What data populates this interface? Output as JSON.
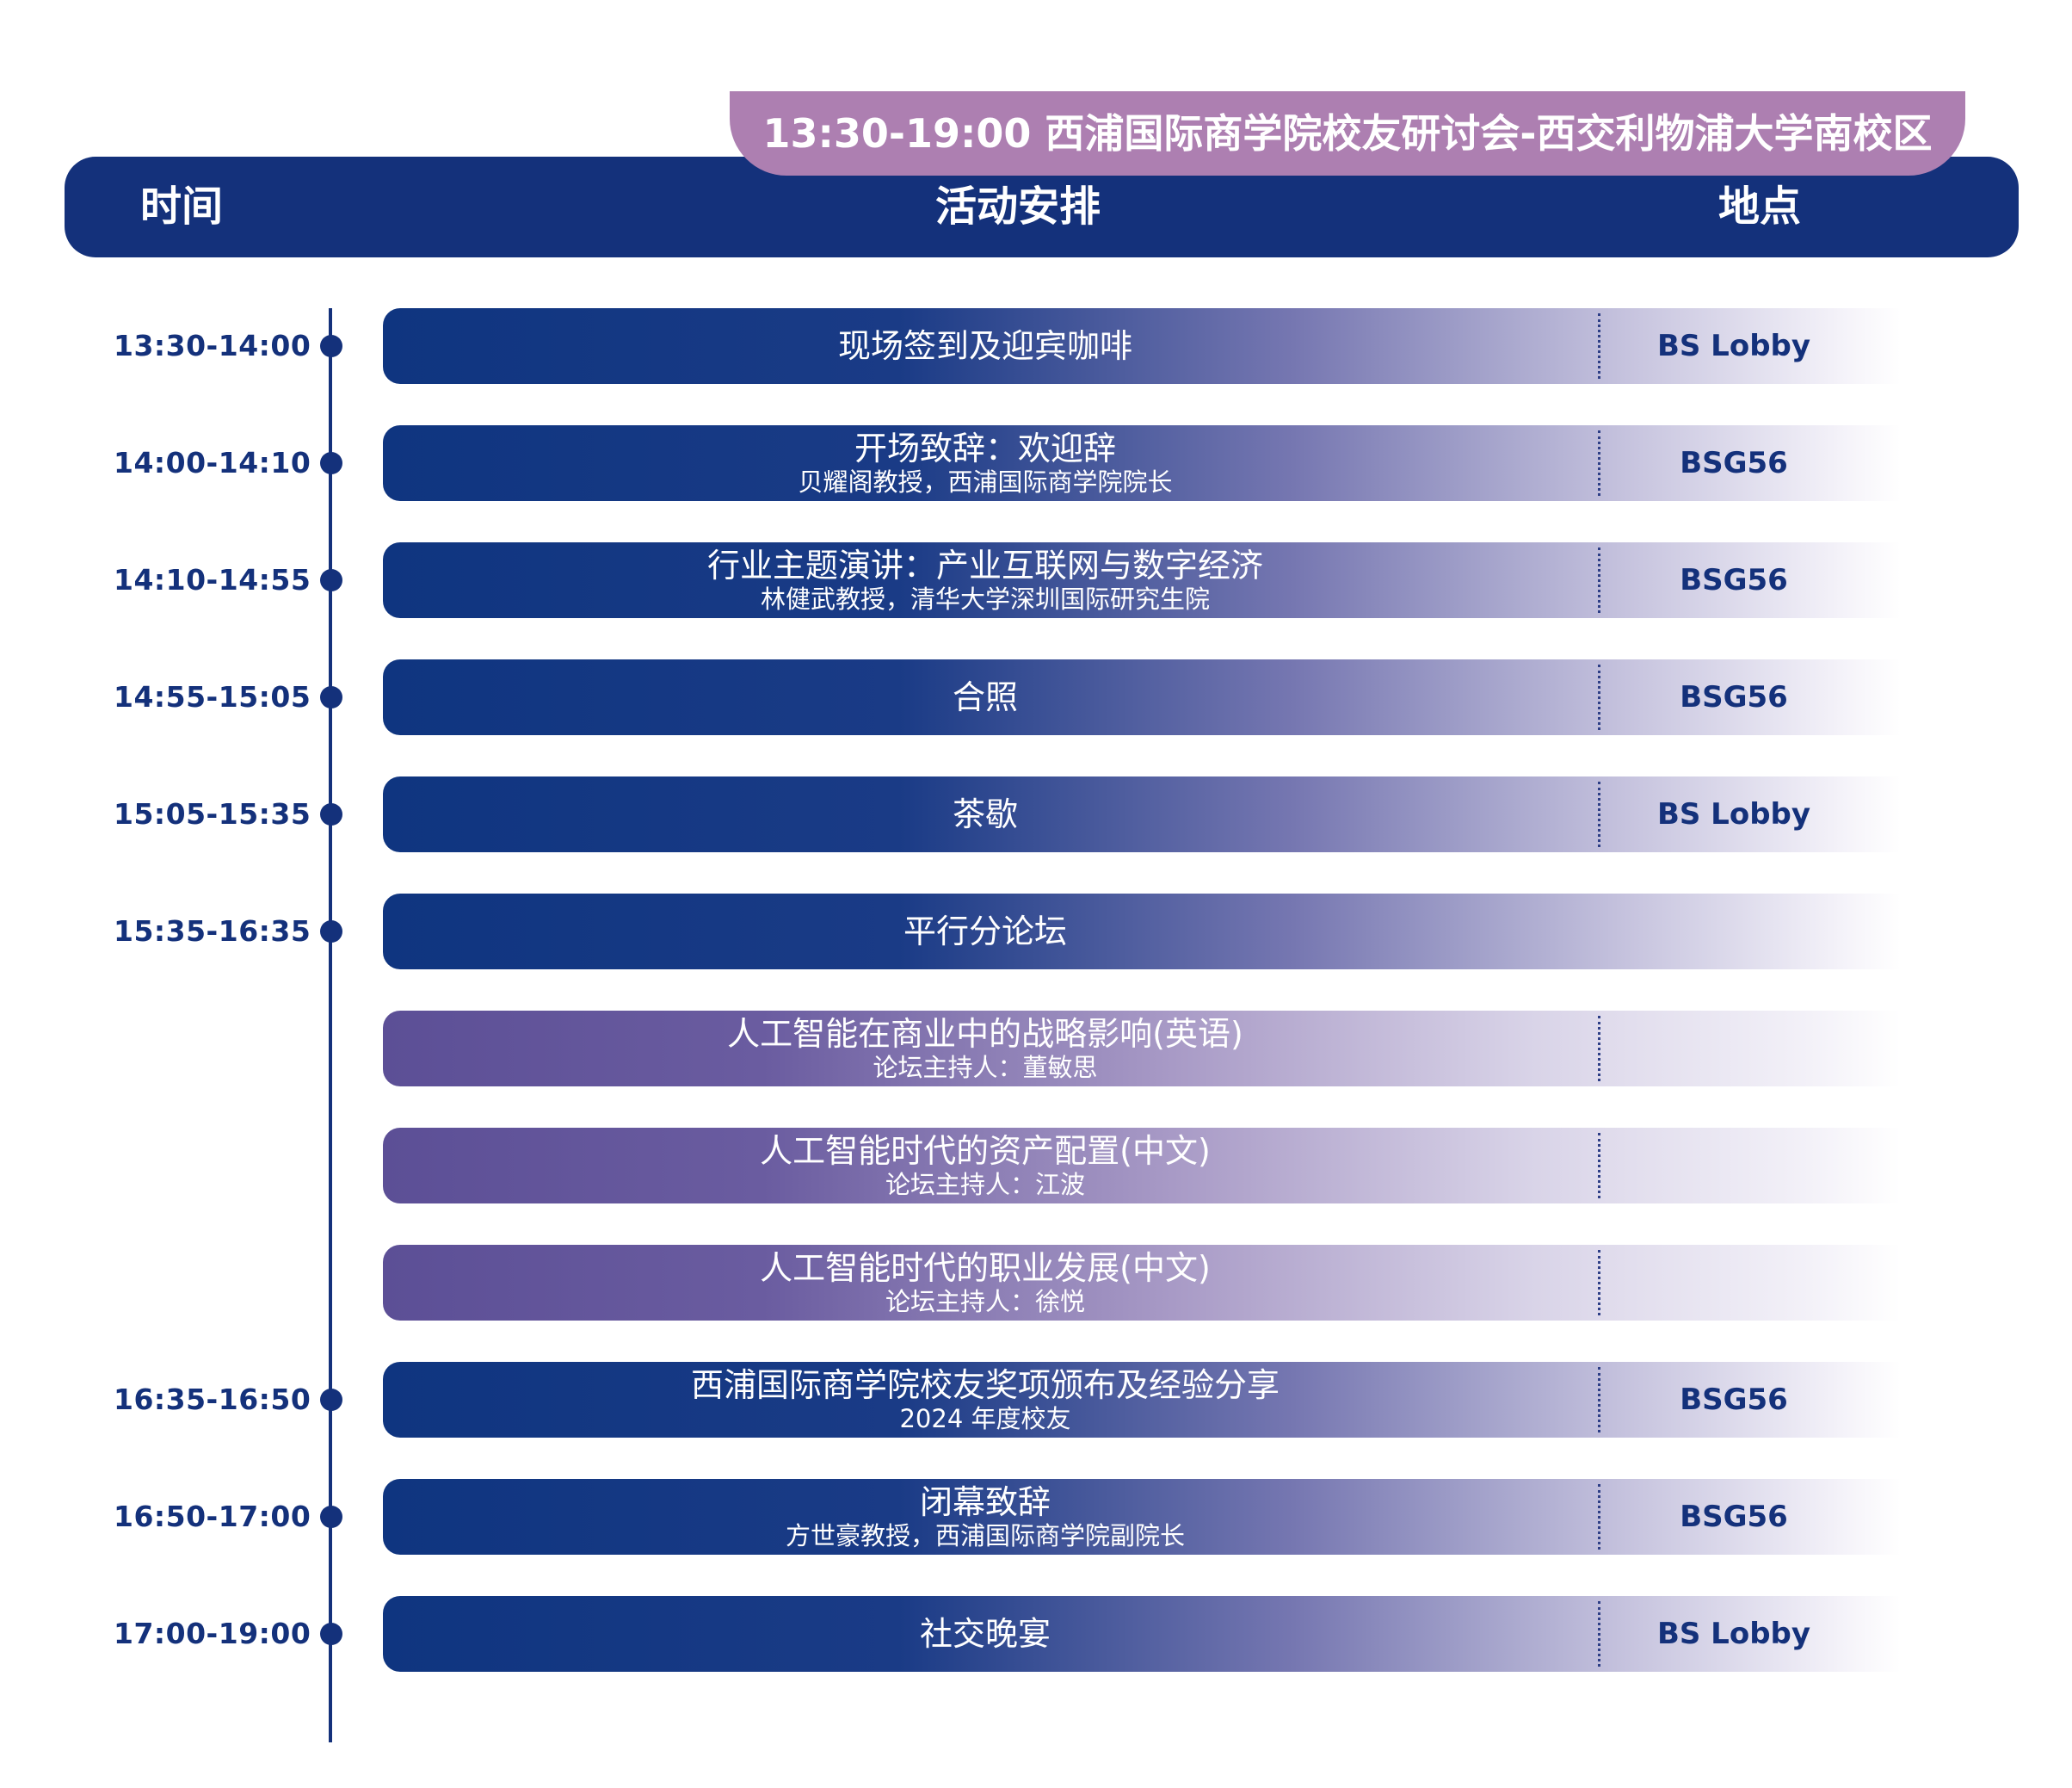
{
  "banner": {
    "text": "13:30-19:00 西浦国际商学院校友研讨会-西交利物浦大学南校区"
  },
  "header": {
    "time": "时间",
    "activity": "活动安排",
    "location": "地点"
  },
  "colors": {
    "navy": "#14317b",
    "purple": "#5c4f96",
    "banner_pink": "#ad7fb1"
  },
  "rows": [
    {
      "time": "13:30-14:00",
      "title": "现场签到及迎宾咖啡",
      "subtitle": "",
      "location": "BS Lobby"
    },
    {
      "time": "14:00-14:10",
      "title": "开场致辞：欢迎辞",
      "subtitle": "贝耀阁教授，西浦国际商学院院长",
      "location": "BSG56"
    },
    {
      "time": "14:10-14:55",
      "title": "行业主题演讲：产业互联网与数字经济",
      "subtitle": "林健武教授，清华大学深圳国际研究生院",
      "location": "BSG56"
    },
    {
      "time": "14:55-15:05",
      "title": "合照",
      "subtitle": "",
      "location": "BSG56"
    },
    {
      "time": "15:05-15:35",
      "title": "茶歇",
      "subtitle": "",
      "location": "BS Lobby"
    },
    {
      "time": "15:35-16:35",
      "title": "平行分论坛",
      "subtitle": "",
      "location": ""
    },
    {
      "time": "",
      "title": "人工智能在商业中的战略影响(英语)",
      "subtitle": "论坛主持人：董敏思",
      "location": ""
    },
    {
      "time": "",
      "title": "人工智能时代的资产配置(中文)",
      "subtitle": "论坛主持人：江波",
      "location": ""
    },
    {
      "time": "",
      "title": "人工智能时代的职业发展(中文)",
      "subtitle": "论坛主持人：徐悦",
      "location": ""
    },
    {
      "time": "16:35-16:50",
      "title": "西浦国际商学院校友奖项颁布及经验分享",
      "subtitle": "2024 年度校友",
      "location": "BSG56"
    },
    {
      "time": "16:50-17:00",
      "title": "闭幕致辞",
      "subtitle": "方世豪教授，西浦国际商学院副院长",
      "location": "BSG56"
    },
    {
      "time": "17:00-19:00",
      "title": "社交晚宴",
      "subtitle": "",
      "location": "BS Lobby"
    }
  ]
}
